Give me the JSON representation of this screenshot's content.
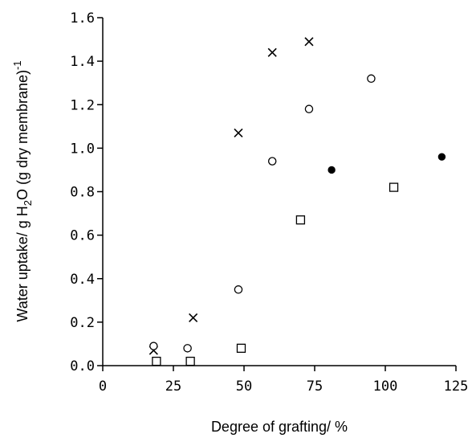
{
  "chart_data": {
    "type": "scatter",
    "xlabel": "Degree of grafting/ %",
    "ylabel": {
      "prefix": "Water uptake/ g H",
      "sub": "2",
      "suffix": "O (g dry membrane)",
      "sup": "-1"
    },
    "xlim": [
      0,
      125
    ],
    "ylim": [
      0,
      1.6
    ],
    "xticks": [
      0,
      25,
      50,
      75,
      100,
      125
    ],
    "xtick_labels": [
      "0",
      "25",
      "50",
      "75",
      "100",
      "125"
    ],
    "yticks": [
      0,
      0.2,
      0.4,
      0.6,
      0.8,
      1.0,
      1.2,
      1.4,
      1.6
    ],
    "ytick_labels": [
      "0.0",
      "0.2",
      "0.4",
      "0.6",
      "0.8",
      "1.0",
      "1.2",
      "1.4",
      "1.6"
    ],
    "grid": false,
    "series": [
      {
        "marker": "cross",
        "color": "#000000",
        "points": [
          [
            18,
            0.07
          ],
          [
            32,
            0.22
          ],
          [
            48,
            1.07
          ],
          [
            60,
            1.44
          ],
          [
            73,
            1.49
          ]
        ]
      },
      {
        "marker": "open-circle",
        "color": "#000000",
        "points": [
          [
            18,
            0.09
          ],
          [
            30,
            0.08
          ],
          [
            48,
            0.35
          ],
          [
            60,
            0.94
          ],
          [
            73,
            1.18
          ],
          [
            95,
            1.32
          ]
        ]
      },
      {
        "marker": "filled-circle",
        "color": "#000000",
        "points": [
          [
            81,
            0.9
          ],
          [
            120,
            0.96
          ]
        ]
      },
      {
        "marker": "open-square",
        "color": "#000000",
        "points": [
          [
            19,
            0.02
          ],
          [
            31,
            0.02
          ],
          [
            49,
            0.08
          ],
          [
            70,
            0.67
          ],
          [
            103,
            0.82
          ]
        ]
      }
    ]
  }
}
